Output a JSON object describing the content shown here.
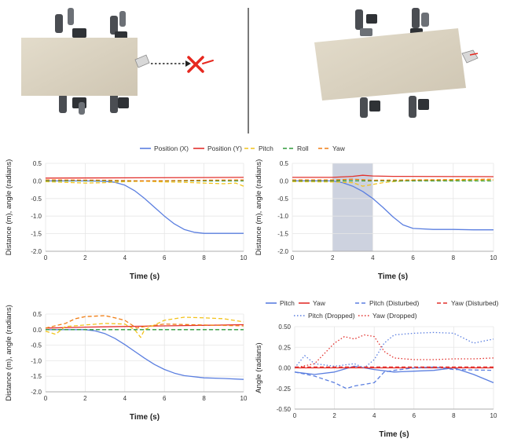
{
  "top_legend": [
    {
      "label": "Position (X)",
      "color": "#5b7fe0",
      "dash": "solid"
    },
    {
      "label": "Position (Y)",
      "color": "#e2312d",
      "dash": "solid"
    },
    {
      "label": "Pitch",
      "color": "#f2c21b",
      "dash": "dashed"
    },
    {
      "label": "Roll",
      "color": "#2e9a3a",
      "dash": "dashed"
    },
    {
      "label": "Yaw",
      "color": "#f07f17",
      "dash": "dashed"
    }
  ],
  "bottom_legend": [
    {
      "label": "Pitch",
      "color": "#5b7fe0",
      "dash": "solid"
    },
    {
      "label": "Yaw",
      "color": "#e2312d",
      "dash": "solid"
    },
    {
      "label": "Pitch (Disturbed)",
      "color": "#5b7fe0",
      "dash": "dashed"
    },
    {
      "label": "Yaw (Disturbed)",
      "color": "#e2312d",
      "dash": "dashed"
    },
    {
      "label": "Pitch (Dropped)",
      "color": "#5b7fe0",
      "dash": "dotted"
    },
    {
      "label": "Yaw (Dropped)",
      "color": "#e2312d",
      "dash": "dotted"
    }
  ],
  "chart_data": [
    {
      "type": "line",
      "xlabel": "Time (s)",
      "ylabel": "Distance (m), angle (radians)",
      "xlim": [
        0,
        10
      ],
      "ylim": [
        -2.0,
        0.5
      ],
      "xticks": [
        "0",
        "2",
        "4",
        "6",
        "8",
        "10"
      ],
      "yticks": [
        "0.5",
        "0.0",
        "-0.5",
        "-1.0",
        "-1.5",
        "-2.0"
      ],
      "grid": true,
      "series": [
        {
          "name": "Position (X)",
          "color": "#5b7fe0",
          "dash": "solid",
          "points": [
            [
              0,
              0
            ],
            [
              2,
              0
            ],
            [
              3,
              -0.01
            ],
            [
              3.5,
              -0.04
            ],
            [
              4,
              -0.12
            ],
            [
              4.5,
              -0.28
            ],
            [
              5,
              -0.5
            ],
            [
              5.5,
              -0.75
            ],
            [
              6,
              -1.0
            ],
            [
              6.5,
              -1.22
            ],
            [
              7,
              -1.38
            ],
            [
              7.5,
              -1.46
            ],
            [
              8,
              -1.49
            ],
            [
              9,
              -1.49
            ],
            [
              10,
              -1.49
            ]
          ]
        },
        {
          "name": "Position (Y)",
          "color": "#e2312d",
          "dash": "solid",
          "points": [
            [
              0,
              0.08
            ],
            [
              5,
              0.09
            ],
            [
              10,
              0.1
            ]
          ]
        },
        {
          "name": "Pitch",
          "color": "#f2c21b",
          "dash": "dashed",
          "points": [
            [
              0,
              -0.02
            ],
            [
              1,
              -0.04
            ],
            [
              2,
              -0.06
            ],
            [
              3,
              -0.05
            ],
            [
              4,
              -0.02
            ],
            [
              5,
              -0.01
            ],
            [
              6,
              -0.03
            ],
            [
              7,
              -0.04
            ],
            [
              8,
              -0.06
            ],
            [
              9,
              -0.08
            ],
            [
              9.6,
              -0.06
            ],
            [
              10,
              -0.15
            ]
          ]
        },
        {
          "name": "Roll",
          "color": "#2e9a3a",
          "dash": "dashed",
          "points": [
            [
              0,
              0.01
            ],
            [
              5,
              0.0
            ],
            [
              10,
              0.0
            ]
          ]
        },
        {
          "name": "Yaw",
          "color": "#f07f17",
          "dash": "dashed",
          "points": [
            [
              0,
              0.03
            ],
            [
              3,
              0.02
            ],
            [
              5,
              0.0
            ],
            [
              8,
              0.02
            ],
            [
              10,
              0.03
            ]
          ]
        }
      ]
    },
    {
      "type": "line",
      "xlabel": "Time (s)",
      "ylabel": "Distance (m), angle (radians)",
      "xlim": [
        0,
        10
      ],
      "ylim": [
        -2.0,
        0.5
      ],
      "xticks": [
        "0",
        "2",
        "4",
        "6",
        "8",
        "10"
      ],
      "yticks": [
        "0.5",
        "0.0",
        "-0.5",
        "-1.0",
        "-1.5",
        "-2.0"
      ],
      "grid": true,
      "shaded_x_range": [
        2,
        4
      ],
      "series": [
        {
          "name": "Position (X)",
          "color": "#5b7fe0",
          "dash": "solid",
          "points": [
            [
              0,
              0
            ],
            [
              2,
              0
            ],
            [
              2.5,
              -0.05
            ],
            [
              3,
              -0.15
            ],
            [
              3.5,
              -0.3
            ],
            [
              4,
              -0.5
            ],
            [
              4.5,
              -0.75
            ],
            [
              5,
              -1.02
            ],
            [
              5.5,
              -1.25
            ],
            [
              6,
              -1.35
            ],
            [
              7,
              -1.38
            ],
            [
              8,
              -1.38
            ],
            [
              9,
              -1.39
            ],
            [
              10,
              -1.39
            ]
          ]
        },
        {
          "name": "Position (Y)",
          "color": "#e2312d",
          "dash": "solid",
          "points": [
            [
              0,
              0.1
            ],
            [
              2,
              0.1
            ],
            [
              3,
              0.13
            ],
            [
              3.5,
              0.16
            ],
            [
              4,
              0.14
            ],
            [
              5,
              0.13
            ],
            [
              10,
              0.12
            ]
          ]
        },
        {
          "name": "Pitch",
          "color": "#f2c21b",
          "dash": "dashed",
          "points": [
            [
              0,
              -0.02
            ],
            [
              2,
              -0.03
            ],
            [
              3,
              -0.05
            ],
            [
              3.5,
              -0.15
            ],
            [
              4,
              -0.1
            ],
            [
              4.5,
              -0.05
            ],
            [
              5,
              -0.02
            ],
            [
              6,
              0.02
            ],
            [
              8,
              0.02
            ],
            [
              10,
              0.03
            ]
          ]
        },
        {
          "name": "Roll",
          "color": "#2e9a3a",
          "dash": "dashed",
          "points": [
            [
              0,
              0.01
            ],
            [
              5,
              0.0
            ],
            [
              10,
              0.0
            ]
          ]
        },
        {
          "name": "Yaw",
          "color": "#f07f17",
          "dash": "dashed",
          "points": [
            [
              0,
              0.03
            ],
            [
              2,
              0.03
            ],
            [
              3,
              0.05
            ],
            [
              4,
              0.02
            ],
            [
              6,
              0.03
            ],
            [
              10,
              0.05
            ]
          ]
        }
      ]
    },
    {
      "type": "line",
      "xlabel": "Time (s)",
      "ylabel": "Distance (m), angle (radians)",
      "xlim": [
        0,
        10
      ],
      "ylim": [
        -2.0,
        0.5
      ],
      "xticks": [
        "0",
        "2",
        "4",
        "6",
        "8",
        "10"
      ],
      "yticks": [
        "0.5",
        "0.0",
        "-0.5",
        "-1.0",
        "-1.5",
        "-2.0"
      ],
      "grid": true,
      "series": [
        {
          "name": "Position (X)",
          "color": "#5b7fe0",
          "dash": "solid",
          "points": [
            [
              0,
              0
            ],
            [
              2,
              0
            ],
            [
              2.5,
              -0.04
            ],
            [
              3,
              -0.13
            ],
            [
              3.5,
              -0.28
            ],
            [
              4,
              -0.48
            ],
            [
              4.5,
              -0.7
            ],
            [
              5,
              -0.92
            ],
            [
              5.5,
              -1.12
            ],
            [
              6,
              -1.28
            ],
            [
              6.5,
              -1.4
            ],
            [
              7,
              -1.48
            ],
            [
              8,
              -1.55
            ],
            [
              9,
              -1.57
            ],
            [
              10,
              -1.6
            ]
          ]
        },
        {
          "name": "Position (Y)",
          "color": "#e2312d",
          "dash": "solid",
          "points": [
            [
              0,
              0.05
            ],
            [
              2,
              0.08
            ],
            [
              4,
              0.1
            ],
            [
              6,
              0.12
            ],
            [
              8,
              0.14
            ],
            [
              10,
              0.16
            ]
          ]
        },
        {
          "name": "Pitch",
          "color": "#f2c21b",
          "dash": "dashed",
          "points": [
            [
              0,
              -0.05
            ],
            [
              0.5,
              -0.15
            ],
            [
              1,
              0.1
            ],
            [
              2,
              0.15
            ],
            [
              3,
              0.2
            ],
            [
              4,
              0.18
            ],
            [
              4.5,
              0.0
            ],
            [
              4.8,
              -0.25
            ],
            [
              5,
              0.0
            ],
            [
              6,
              0.3
            ],
            [
              7,
              0.4
            ],
            [
              8,
              0.38
            ],
            [
              9,
              0.35
            ],
            [
              10,
              0.25
            ]
          ]
        },
        {
          "name": "Roll",
          "color": "#2e9a3a",
          "dash": "dashed",
          "points": [
            [
              0,
              0.0
            ],
            [
              5,
              0.0
            ],
            [
              10,
              0.0
            ]
          ]
        },
        {
          "name": "Yaw",
          "color": "#f07f17",
          "dash": "dashed",
          "points": [
            [
              0,
              0.05
            ],
            [
              1,
              0.2
            ],
            [
              1.5,
              0.35
            ],
            [
              2,
              0.42
            ],
            [
              3,
              0.45
            ],
            [
              3.5,
              0.38
            ],
            [
              4,
              0.3
            ],
            [
              4.6,
              0.05
            ],
            [
              5,
              0.1
            ],
            [
              6,
              0.18
            ],
            [
              8,
              0.15
            ],
            [
              10,
              0.12
            ]
          ]
        }
      ]
    },
    {
      "type": "line",
      "xlabel": "Time (s)",
      "ylabel": "Angle (radians)",
      "xlim": [
        0,
        10
      ],
      "ylim": [
        -0.5,
        0.5
      ],
      "xticks": [
        "0",
        "2",
        "4",
        "6",
        "8",
        "10"
      ],
      "yticks": [
        "0.50",
        "0.25",
        "0.00",
        "-0.25",
        "-0.50"
      ],
      "grid": true,
      "series": [
        {
          "name": "Pitch",
          "color": "#5b7fe0",
          "dash": "solid",
          "points": [
            [
              0,
              -0.05
            ],
            [
              1,
              -0.08
            ],
            [
              2,
              -0.05
            ],
            [
              3,
              0.02
            ],
            [
              4,
              -0.02
            ],
            [
              5,
              -0.05
            ],
            [
              6,
              -0.04
            ],
            [
              7,
              -0.03
            ],
            [
              8,
              0.0
            ],
            [
              9,
              -0.08
            ],
            [
              10,
              -0.18
            ]
          ]
        },
        {
          "name": "Yaw",
          "color": "#e2312d",
          "dash": "solid",
          "points": [
            [
              0,
              0.0
            ],
            [
              5,
              0.0
            ],
            [
              10,
              0.0
            ]
          ]
        },
        {
          "name": "Pitch (Disturbed)",
          "color": "#5b7fe0",
          "dash": "dashed",
          "points": [
            [
              0,
              -0.05
            ],
            [
              1,
              -0.1
            ],
            [
              2,
              -0.18
            ],
            [
              2.6,
              -0.25
            ],
            [
              3,
              -0.22
            ],
            [
              4,
              -0.18
            ],
            [
              4.5,
              -0.05
            ],
            [
              5,
              -0.03
            ],
            [
              6,
              0.0
            ],
            [
              7,
              0.01
            ],
            [
              8,
              -0.02
            ],
            [
              10,
              -0.03
            ]
          ]
        },
        {
          "name": "Yaw (Disturbed)",
          "color": "#e2312d",
          "dash": "dashed",
          "points": [
            [
              0,
              0.01
            ],
            [
              5,
              0.01
            ],
            [
              10,
              0.01
            ]
          ]
        },
        {
          "name": "Pitch (Dropped)",
          "color": "#5b7fe0",
          "dash": "dotted",
          "points": [
            [
              0,
              0.0
            ],
            [
              0.5,
              0.15
            ],
            [
              1,
              0.05
            ],
            [
              2,
              0.02
            ],
            [
              3,
              0.05
            ],
            [
              3.5,
              0.0
            ],
            [
              4,
              0.1
            ],
            [
              4.5,
              0.3
            ],
            [
              5,
              0.4
            ],
            [
              6,
              0.42
            ],
            [
              7,
              0.43
            ],
            [
              8,
              0.42
            ],
            [
              9,
              0.3
            ],
            [
              10,
              0.35
            ]
          ]
        },
        {
          "name": "Yaw (Dropped)",
          "color": "#e2312d",
          "dash": "dotted",
          "points": [
            [
              0,
              0.0
            ],
            [
              1,
              0.05
            ],
            [
              2,
              0.3
            ],
            [
              2.5,
              0.38
            ],
            [
              3,
              0.35
            ],
            [
              3.5,
              0.4
            ],
            [
              4,
              0.38
            ],
            [
              4.5,
              0.2
            ],
            [
              5,
              0.12
            ],
            [
              6,
              0.1
            ],
            [
              7,
              0.1
            ],
            [
              8,
              0.11
            ],
            [
              9,
              0.11
            ],
            [
              10,
              0.12
            ]
          ]
        }
      ]
    }
  ]
}
